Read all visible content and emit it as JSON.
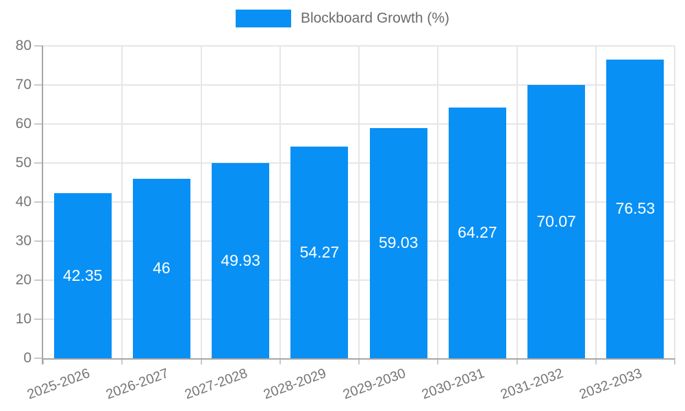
{
  "chart_data": {
    "type": "bar",
    "title": "",
    "legend": "Blockboard Growth (%)",
    "legend_position": "top-center",
    "categories": [
      "2025-2026",
      "2026-2027",
      "2027-2028",
      "2028-2029",
      "2029-2030",
      "2030-2031",
      "2031-2032",
      "2032-2033"
    ],
    "values": [
      42.35,
      46,
      49.93,
      54.27,
      59.03,
      64.27,
      70.07,
      76.53
    ],
    "value_labels": [
      "42.35",
      "46",
      "49.93",
      "54.27",
      "59.03",
      "64.27",
      "70.07",
      "76.53"
    ],
    "xlabel": "",
    "ylabel": "",
    "ylim": [
      0,
      80
    ],
    "ytick_step": 10,
    "ytick_labels": [
      "0",
      "10",
      "20",
      "30",
      "40",
      "50",
      "60",
      "70",
      "80"
    ],
    "grid": true,
    "x_label_rotation_deg": -20,
    "colors": {
      "bar": "#0890f5",
      "bar_label_text": "#ffffff",
      "grid": "#e6e6e6",
      "axis": "#a6a6a6",
      "tick": "#c9c9c9",
      "tick_label": "#757575",
      "legend_text": "#6b6b6b"
    }
  }
}
